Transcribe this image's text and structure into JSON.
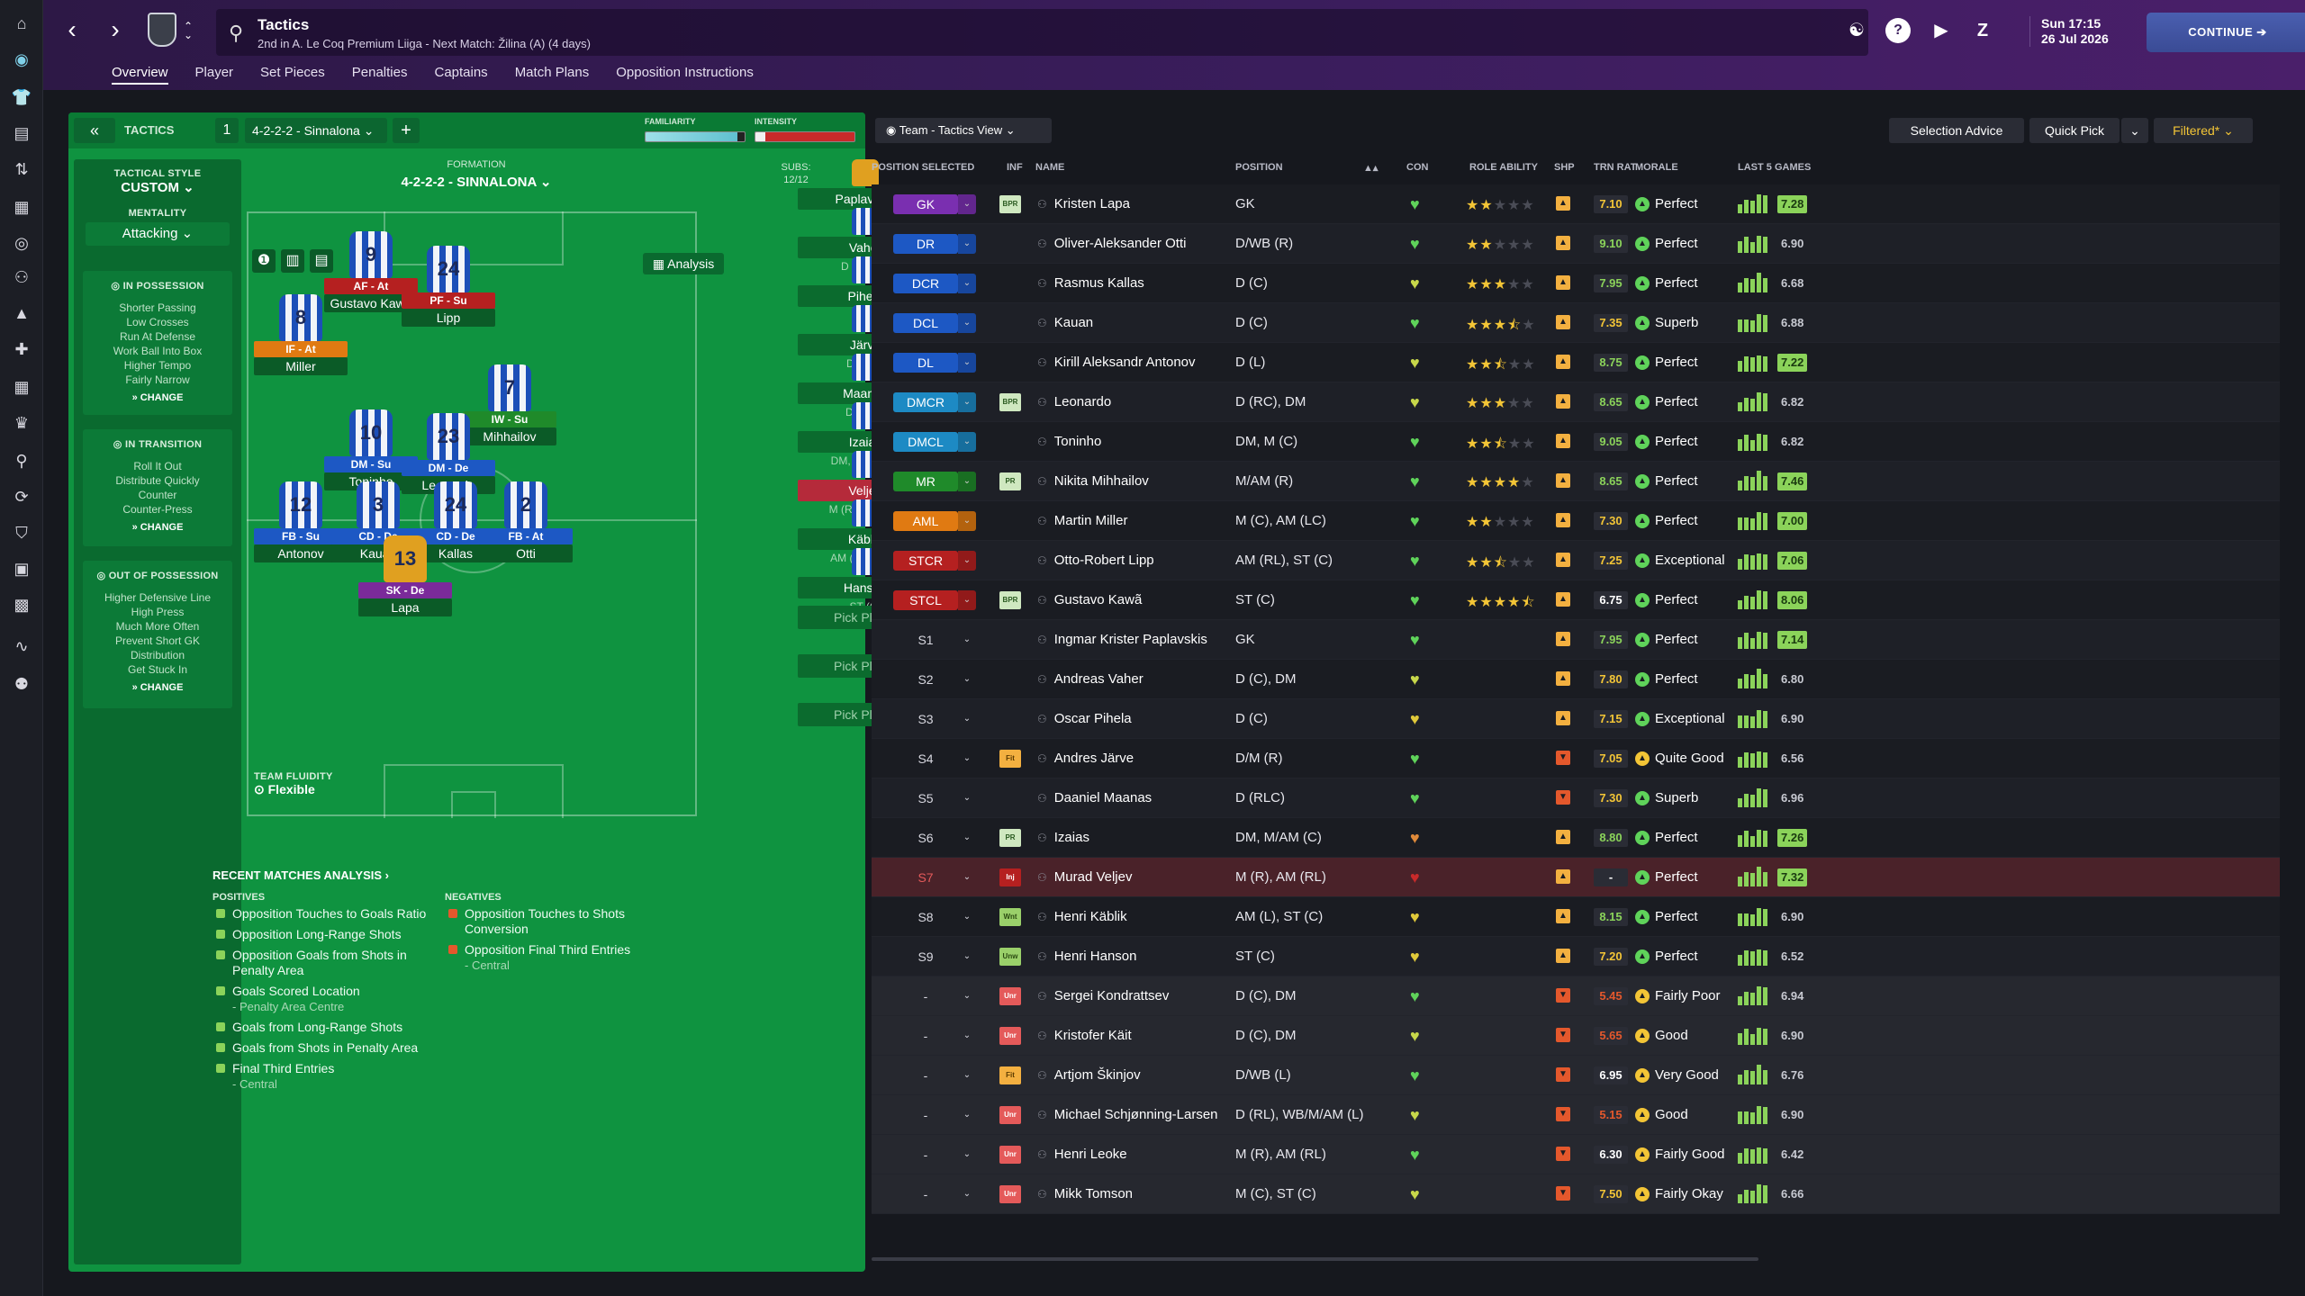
{
  "topbar": {
    "title": "Tactics",
    "subtitle": "2nd in A. Le Coq Premium Liiga - Next Match: Žilina (A) (4 days)",
    "date_time": "Sun 17:15",
    "date": "26 Jul 2026",
    "continue_label": "CONTINUE"
  },
  "subtabs": [
    "Overview",
    "Player",
    "Set Pieces",
    "Penalties",
    "Captains",
    "Match Plans",
    "Opposition Instructions"
  ],
  "tactic": {
    "label": "TACTICS",
    "slot": "1",
    "name": "4-2-2-2 - Sinnalona",
    "familiarity_label": "FAMILIARITY",
    "familiarity_value": 0.93,
    "intensity_label": "INTENSITY",
    "intensity_value": 0.1,
    "tactical_style_cap": "TACTICAL STYLE",
    "tactical_style": "CUSTOM",
    "mentality_cap": "MENTALITY",
    "mentality": "Attacking",
    "in_possession": {
      "title": "IN POSSESSION",
      "lines": [
        "Shorter Passing",
        "Low Crosses",
        "Run At Defense",
        "Work Ball Into Box",
        "Higher Tempo",
        "Fairly Narrow"
      ]
    },
    "in_transition": {
      "title": "IN TRANSITION",
      "lines": [
        "Roll It Out",
        "Distribute Quickly",
        "Counter",
        "Counter-Press"
      ]
    },
    "out_of_possession": {
      "title": "OUT OF POSSESSION",
      "lines": [
        "Higher Defensive Line",
        "High Press",
        "Much More Often",
        "Prevent Short GK",
        "Distribution",
        "Get Stuck In"
      ]
    },
    "change_label": "CHANGE",
    "formation_cap": "FORMATION",
    "formation": "4-2-2-2 - SINNALONA",
    "subs_cap": "SUBS:",
    "subs_count": "12/12",
    "analysis_label": "Analysis",
    "fluidity_cap": "TEAM FLUIDITY",
    "fluidity": "Flexible"
  },
  "pitch_players": [
    {
      "num": "9",
      "role": "AF - At",
      "name": "Gustavo Kawã",
      "role_color": "#b52020"
    },
    {
      "num": "24",
      "role": "PF - Su",
      "name": "Lipp",
      "role_color": "#b52020"
    },
    {
      "num": "8",
      "role": "IF - At",
      "name": "Miller",
      "role_color": "#e07a12"
    },
    {
      "num": "7",
      "role": "IW - Su",
      "name": "Mihhailov",
      "role_color": "#1f8a2a"
    },
    {
      "num": "10",
      "role": "DM - Su",
      "name": "Toninho",
      "role_color": "#1d58c4"
    },
    {
      "num": "23",
      "role": "DM - De",
      "name": "Leonardo",
      "role_color": "#1d58c4"
    },
    {
      "num": "12",
      "role": "FB - Su",
      "name": "Antonov",
      "role_color": "#1d58c4"
    },
    {
      "num": "3",
      "role": "CD - De",
      "name": "Kauan",
      "role_color": "#1d58c4"
    },
    {
      "num": "24",
      "role": "CD - De",
      "name": "Kallas",
      "role_color": "#1d58c4"
    },
    {
      "num": "2",
      "role": "FB - At",
      "name": "Otti",
      "role_color": "#1d58c4"
    },
    {
      "num": "13",
      "role": "SK - De",
      "name": "Lapa",
      "role_color": "#7b2a9a"
    }
  ],
  "bench": [
    {
      "name": "Paplavskis",
      "pos": "GK"
    },
    {
      "name": "Vaher",
      "pos": "D (C), DM"
    },
    {
      "name": "Pihela",
      "pos": "D (C)"
    },
    {
      "name": "Järve",
      "pos": "D/M (R)"
    },
    {
      "name": "Maanas",
      "pos": "D (RLC)"
    },
    {
      "name": "Izaias",
      "pos": "DM, M/AM (C)"
    },
    {
      "name": "Veljev",
      "pos": "M (R), AM (RL)"
    },
    {
      "name": "Käblik",
      "pos": "AM (L), ST (C)"
    },
    {
      "name": "Hanson",
      "pos": "ST (C)"
    }
  ],
  "pick_player_label": "Pick Player",
  "analysis": {
    "title": "RECENT MATCHES ANALYSIS",
    "positives_cap": "POSITIVES",
    "negatives_cap": "NEGATIVES",
    "positives": [
      {
        "text": "Opposition Touches to Goals Ratio",
        "sub": ""
      },
      {
        "text": "Opposition Long-Range Shots",
        "sub": ""
      },
      {
        "text": "Opposition Goals from Shots in Penalty Area",
        "sub": ""
      },
      {
        "text": "Goals Scored Location",
        "sub": "- Penalty Area Centre"
      },
      {
        "text": "Goals from Long-Range Shots",
        "sub": ""
      },
      {
        "text": "Goals from Shots in Penalty Area",
        "sub": ""
      },
      {
        "text": "Final Third Entries",
        "sub": "- Central"
      }
    ],
    "negatives": [
      {
        "text": "Opposition Touches to Shots Conversion",
        "sub": ""
      },
      {
        "text": "Opposition Final Third Entries",
        "sub": "- Central"
      }
    ]
  },
  "right": {
    "view_label": "Team - Tactics View",
    "selection_advice": "Selection Advice",
    "quick_pick": "Quick Pick",
    "filtered": "Filtered*",
    "headers": {
      "pos": "POSITION SELECTED",
      "inf": "INF",
      "name": "NAME",
      "position": "POSITION",
      "con": "CON",
      "role": "ROLE ABILITY",
      "shp": "SHP",
      "trn": "TRN RAT",
      "morale": "MORALE",
      "last5": "LAST 5 GAMES"
    }
  },
  "squad": [
    {
      "slot": "GK",
      "color": "#7a2fb0",
      "inf": "BPR",
      "name": "Kristen Lapa",
      "position": "GK",
      "con": "#5fd35a",
      "stars": 2,
      "shp": "up",
      "trn": "7.10",
      "trn_color": "#f3c536",
      "mor": "Perfect",
      "mor_c": "#5fd35a",
      "last5": "7.28",
      "hi": true
    },
    {
      "slot": "DR",
      "color": "#1d58c4",
      "inf": "",
      "name": "Oliver-Aleksander Otti",
      "position": "D/WB (R)",
      "con": "#5fd35a",
      "stars": 2,
      "shp": "up",
      "trn": "9.10",
      "trn_color": "#8bd35a",
      "mor": "Perfect",
      "mor_c": "#5fd35a",
      "last5": "6.90",
      "hi": false
    },
    {
      "slot": "DCR",
      "color": "#1d58c4",
      "inf": "",
      "name": "Rasmus Kallas",
      "position": "D (C)",
      "con": "#c7d74a",
      "stars": 3,
      "shp": "up",
      "trn": "7.95",
      "trn_color": "#8bd35a",
      "mor": "Perfect",
      "mor_c": "#5fd35a",
      "last5": "6.68",
      "hi": false
    },
    {
      "slot": "DCL",
      "color": "#1d58c4",
      "inf": "",
      "name": "Kauan",
      "position": "D (C)",
      "con": "#5fd35a",
      "stars": 3.5,
      "shp": "up",
      "trn": "7.35",
      "trn_color": "#f3c536",
      "mor": "Superb",
      "mor_c": "#5fd35a",
      "last5": "6.88",
      "hi": false
    },
    {
      "slot": "DL",
      "color": "#1d58c4",
      "inf": "",
      "name": "Kirill Aleksandr Antonov",
      "position": "D (L)",
      "con": "#c7d74a",
      "stars": 2.5,
      "shp": "up",
      "trn": "8.75",
      "trn_color": "#8bd35a",
      "mor": "Perfect",
      "mor_c": "#5fd35a",
      "last5": "7.22",
      "hi": true
    },
    {
      "slot": "DMCR",
      "color": "#1d8ac4",
      "inf": "BPR",
      "name": "Leonardo",
      "position": "D (RC), DM",
      "con": "#c7d74a",
      "stars": 3,
      "shp": "up",
      "trn": "8.65",
      "trn_color": "#8bd35a",
      "mor": "Perfect",
      "mor_c": "#5fd35a",
      "last5": "6.82",
      "hi": false
    },
    {
      "slot": "DMCL",
      "color": "#1d8ac4",
      "inf": "",
      "name": "Toninho",
      "position": "DM, M (C)",
      "con": "#5fd35a",
      "stars": 2.5,
      "shp": "up",
      "trn": "9.05",
      "trn_color": "#8bd35a",
      "mor": "Perfect",
      "mor_c": "#5fd35a",
      "last5": "6.82",
      "hi": false
    },
    {
      "slot": "MR",
      "color": "#1f8a2a",
      "inf": "PR",
      "name": "Nikita Mihhailov",
      "position": "M/AM (R)",
      "con": "#5fd35a",
      "stars": 4,
      "shp": "up",
      "trn": "8.65",
      "trn_color": "#8bd35a",
      "mor": "Perfect",
      "mor_c": "#5fd35a",
      "last5": "7.46",
      "hi": true
    },
    {
      "slot": "AML",
      "color": "#e07a12",
      "inf": "",
      "name": "Martin Miller",
      "position": "M (C), AM (LC)",
      "con": "#5fd35a",
      "stars": 2,
      "shp": "up",
      "trn": "7.30",
      "trn_color": "#f3c536",
      "mor": "Perfect",
      "mor_c": "#5fd35a",
      "last5": "7.00",
      "hi": true
    },
    {
      "slot": "STCR",
      "color": "#b52020",
      "inf": "",
      "name": "Otto-Robert Lipp",
      "position": "AM (RL), ST (C)",
      "con": "#5fd35a",
      "stars": 2.5,
      "shp": "up",
      "trn": "7.25",
      "trn_color": "#f3c536",
      "mor": "Exceptional",
      "mor_c": "#5fd35a",
      "last5": "7.06",
      "hi": true
    },
    {
      "slot": "STCL",
      "color": "#b52020",
      "inf": "BPR",
      "name": "Gustavo Kawã",
      "position": "ST (C)",
      "con": "#5fd35a",
      "stars": 4.5,
      "shp": "up",
      "trn": "6.75",
      "trn_color": "#ffffff",
      "mor": "Perfect",
      "mor_c": "#5fd35a",
      "last5": "8.06",
      "hi": true
    },
    {
      "slot": "S1",
      "color": "",
      "inf": "",
      "name": "Ingmar Krister Paplavskis",
      "position": "GK",
      "con": "#5fd35a",
      "stars": 0,
      "shp": "up",
      "trn": "7.95",
      "trn_color": "#8bd35a",
      "mor": "Perfect",
      "mor_c": "#5fd35a",
      "last5": "7.14",
      "hi": true
    },
    {
      "slot": "S2",
      "color": "",
      "inf": "",
      "name": "Andreas Vaher",
      "position": "D (C), DM",
      "con": "#c7d74a",
      "stars": 0,
      "shp": "up",
      "trn": "7.80",
      "trn_color": "#f3c536",
      "mor": "Perfect",
      "mor_c": "#5fd35a",
      "last5": "6.80",
      "hi": false
    },
    {
      "slot": "S3",
      "color": "",
      "inf": "",
      "name": "Oscar Pihela",
      "position": "D (C)",
      "con": "#e0c93a",
      "stars": 0,
      "shp": "up",
      "trn": "7.15",
      "trn_color": "#f3c536",
      "mor": "Exceptional",
      "mor_c": "#5fd35a",
      "last5": "6.90",
      "hi": false
    },
    {
      "slot": "S4",
      "color": "",
      "inf": "Fit",
      "name": "Andres Järve",
      "position": "D/M (R)",
      "con": "#5fd35a",
      "stars": 0,
      "shp": "down",
      "trn": "7.05",
      "trn_color": "#f3c536",
      "mor": "Quite Good",
      "mor_c": "#f3c536",
      "last5": "6.56",
      "hi": false
    },
    {
      "slot": "S5",
      "color": "",
      "inf": "",
      "name": "Daaniel Maanas",
      "position": "D (RLC)",
      "con": "#5fd35a",
      "stars": 0,
      "shp": "down",
      "trn": "7.30",
      "trn_color": "#f3c536",
      "mor": "Superb",
      "mor_c": "#5fd35a",
      "last5": "6.96",
      "hi": false
    },
    {
      "slot": "S6",
      "color": "",
      "inf": "PR",
      "name": "Izaias",
      "position": "DM, M/AM (C)",
      "con": "#e08a3a",
      "stars": 0,
      "shp": "up",
      "trn": "8.80",
      "trn_color": "#8bd35a",
      "mor": "Perfect",
      "mor_c": "#5fd35a",
      "last5": "7.26",
      "hi": true
    },
    {
      "slot": "S7",
      "color": "",
      "inf": "Inj",
      "name": "Murad Veljev",
      "position": "M (R), AM (RL)",
      "con": "#c82a2a",
      "stars": 0,
      "shp": "up",
      "trn": "-",
      "trn_color": "#ffffff",
      "mor": "Perfect",
      "mor_c": "#5fd35a",
      "last5": "7.32",
      "hi": true,
      "injured": true
    },
    {
      "slot": "S8",
      "color": "",
      "inf": "Wnt",
      "name": "Henri Käblik",
      "position": "AM (L), ST (C)",
      "con": "#e0c93a",
      "stars": 0,
      "shp": "up",
      "trn": "8.15",
      "trn_color": "#8bd35a",
      "mor": "Perfect",
      "mor_c": "#5fd35a",
      "last5": "6.90",
      "hi": false
    },
    {
      "slot": "S9",
      "color": "",
      "inf": "Unw",
      "name": "Henri Hanson",
      "position": "ST (C)",
      "con": "#e0c93a",
      "stars": 0,
      "shp": "up",
      "trn": "7.20",
      "trn_color": "#f3c536",
      "mor": "Perfect",
      "mor_c": "#5fd35a",
      "last5": "6.52",
      "hi": false
    },
    {
      "slot": "-",
      "color": "",
      "inf": "Unr",
      "name": "Sergei Kondrattsev",
      "position": "D (C), DM",
      "con": "#5fd35a",
      "stars": 0,
      "shp": "down",
      "trn": "5.45",
      "trn_color": "#e4582c",
      "mor": "Fairly Poor",
      "mor_c": "#f3c536",
      "last5": "6.94",
      "hi": false,
      "reserve": true
    },
    {
      "slot": "-",
      "color": "",
      "inf": "Unr",
      "name": "Kristofer Käit",
      "position": "D (C), DM",
      "con": "#c7d74a",
      "stars": 0,
      "shp": "down",
      "trn": "5.65",
      "trn_color": "#e4582c",
      "mor": "Good",
      "mor_c": "#f3c536",
      "last5": "6.90",
      "hi": false,
      "reserve": true
    },
    {
      "slot": "-",
      "color": "",
      "inf": "Fit",
      "name": "Artjom Škinjov",
      "position": "D/WB (L)",
      "con": "#5fd35a",
      "stars": 0,
      "shp": "down",
      "trn": "6.95",
      "trn_color": "#ffffff",
      "mor": "Very Good",
      "mor_c": "#f3c536",
      "last5": "6.76",
      "hi": false,
      "reserve": true
    },
    {
      "slot": "-",
      "color": "",
      "inf": "Unr",
      "name": "Michael Schjønning-Larsen",
      "position": "D (RL), WB/M/AM (L)",
      "con": "#c7d74a",
      "stars": 0,
      "shp": "down",
      "trn": "5.15",
      "trn_color": "#e4582c",
      "mor": "Good",
      "mor_c": "#f3c536",
      "last5": "6.90",
      "hi": false,
      "reserve": true
    },
    {
      "slot": "-",
      "color": "",
      "inf": "Unr",
      "name": "Henri Leoke",
      "position": "M (R), AM (RL)",
      "con": "#5fd35a",
      "stars": 0,
      "shp": "down",
      "trn": "6.30",
      "trn_color": "#ffffff",
      "mor": "Fairly Good",
      "mor_c": "#f3c536",
      "last5": "6.42",
      "hi": false,
      "reserve": true
    },
    {
      "slot": "-",
      "color": "",
      "inf": "Unr",
      "name": "Mikk Tomson",
      "position": "M (C), ST (C)",
      "con": "#c7d74a",
      "stars": 0,
      "shp": "down",
      "trn": "7.50",
      "trn_color": "#f3c536",
      "mor": "Fairly Okay",
      "mor_c": "#f3c536",
      "last5": "6.66",
      "hi": false,
      "reserve": true
    }
  ]
}
